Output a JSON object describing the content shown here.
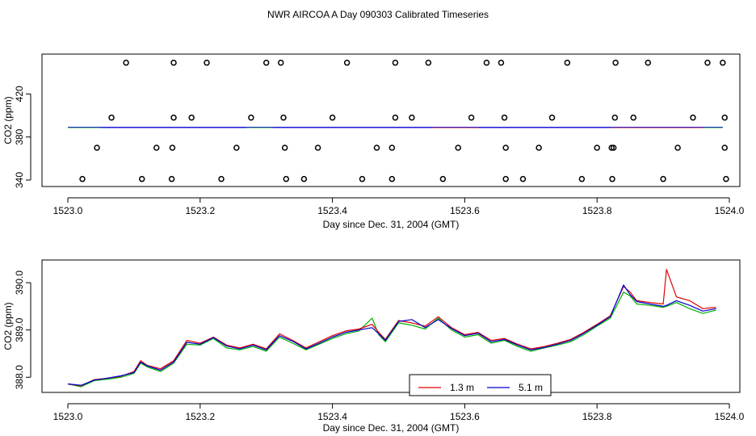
{
  "title": "NWR AIRCOA A  Day 090303  Calibrated Timeseries",
  "colors": {
    "s1": "#e00000",
    "s2": "#00b000",
    "s3": "#0000d0"
  },
  "chart_data": [
    {
      "type": "scatter",
      "xlabel": "Day since Dec. 31, 2004 (GMT)",
      "ylabel": "CO2 (ppm)",
      "xlim": [
        1523.0,
        1524.0
      ],
      "ylim": [
        334,
        457
      ],
      "xticks": [
        1523.0,
        1523.2,
        1523.4,
        1523.6,
        1523.8,
        1524.0
      ],
      "xtick_labels": [
        "1523.0",
        "1523.2",
        "1523.4",
        "1523.6",
        "1523.8",
        "1524.0"
      ],
      "yticks": [
        340,
        380,
        420
      ],
      "ytick_labels": [
        "340",
        "380",
        "420"
      ],
      "grid": false,
      "circles": [
        {
          "x": 1523.022,
          "y": 341
        },
        {
          "x": 1523.112,
          "y": 341
        },
        {
          "x": 1523.157,
          "y": 341
        },
        {
          "x": 1523.232,
          "y": 341
        },
        {
          "x": 1523.33,
          "y": 341
        },
        {
          "x": 1523.357,
          "y": 341
        },
        {
          "x": 1523.445,
          "y": 341
        },
        {
          "x": 1523.49,
          "y": 341
        },
        {
          "x": 1523.567,
          "y": 341
        },
        {
          "x": 1523.662,
          "y": 341
        },
        {
          "x": 1523.688,
          "y": 341
        },
        {
          "x": 1523.777,
          "y": 341
        },
        {
          "x": 1523.823,
          "y": 341
        },
        {
          "x": 1523.9,
          "y": 341
        },
        {
          "x": 1523.995,
          "y": 341
        },
        {
          "x": 1523.044,
          "y": 370
        },
        {
          "x": 1523.134,
          "y": 370
        },
        {
          "x": 1523.158,
          "y": 370
        },
        {
          "x": 1523.255,
          "y": 370
        },
        {
          "x": 1523.328,
          "y": 370
        },
        {
          "x": 1523.378,
          "y": 370
        },
        {
          "x": 1523.467,
          "y": 370
        },
        {
          "x": 1523.49,
          "y": 370
        },
        {
          "x": 1523.59,
          "y": 370
        },
        {
          "x": 1523.662,
          "y": 370
        },
        {
          "x": 1523.712,
          "y": 370
        },
        {
          "x": 1523.8,
          "y": 370
        },
        {
          "x": 1523.822,
          "y": 370
        },
        {
          "x": 1523.825,
          "y": 370
        },
        {
          "x": 1523.922,
          "y": 370
        },
        {
          "x": 1523.993,
          "y": 370
        },
        {
          "x": 1523.066,
          "y": 398
        },
        {
          "x": 1523.16,
          "y": 398
        },
        {
          "x": 1523.187,
          "y": 398
        },
        {
          "x": 1523.277,
          "y": 398
        },
        {
          "x": 1523.326,
          "y": 398
        },
        {
          "x": 1523.4,
          "y": 398
        },
        {
          "x": 1523.495,
          "y": 398
        },
        {
          "x": 1523.52,
          "y": 398
        },
        {
          "x": 1523.61,
          "y": 398
        },
        {
          "x": 1523.66,
          "y": 398
        },
        {
          "x": 1523.732,
          "y": 398
        },
        {
          "x": 1523.827,
          "y": 398
        },
        {
          "x": 1523.855,
          "y": 398
        },
        {
          "x": 1523.945,
          "y": 398
        },
        {
          "x": 1523.993,
          "y": 398
        },
        {
          "x": 1523.088,
          "y": 449
        },
        {
          "x": 1523.16,
          "y": 449
        },
        {
          "x": 1523.21,
          "y": 449
        },
        {
          "x": 1523.3,
          "y": 449
        },
        {
          "x": 1523.322,
          "y": 449
        },
        {
          "x": 1523.422,
          "y": 449
        },
        {
          "x": 1523.495,
          "y": 449
        },
        {
          "x": 1523.545,
          "y": 449
        },
        {
          "x": 1523.633,
          "y": 449
        },
        {
          "x": 1523.655,
          "y": 449
        },
        {
          "x": 1523.755,
          "y": 449
        },
        {
          "x": 1523.828,
          "y": 449
        },
        {
          "x": 1523.877,
          "y": 449
        },
        {
          "x": 1523.967,
          "y": 449
        },
        {
          "x": 1523.99,
          "y": 449
        }
      ],
      "line_y": 389
    },
    {
      "type": "line",
      "xlabel": "Day since Dec. 31, 2004 (GMT)",
      "ylabel": "CO2 (ppm)",
      "xlim": [
        1523.0,
        1524.0
      ],
      "ylim": [
        387.68,
        390.48
      ],
      "xticks": [
        1523.0,
        1523.2,
        1523.4,
        1523.6,
        1523.8,
        1524.0
      ],
      "xtick_labels": [
        "1523.0",
        "1523.2",
        "1523.4",
        "1523.6",
        "1523.8",
        "1524.0"
      ],
      "yticks": [
        388.0,
        389.0,
        390.0
      ],
      "ytick_labels": [
        "388.0",
        "389.0",
        "390.0"
      ],
      "grid": false,
      "legend_position": "bottom-center",
      "legend": [
        {
          "label": "1.3 m",
          "color": "#e00000"
        },
        {
          "label": "5.1 m",
          "color": "#0000d0"
        }
      ],
      "x": [
        1523.0,
        1523.02,
        1523.04,
        1523.06,
        1523.08,
        1523.1,
        1523.11,
        1523.12,
        1523.14,
        1523.16,
        1523.18,
        1523.2,
        1523.22,
        1523.24,
        1523.26,
        1523.28,
        1523.3,
        1523.32,
        1523.34,
        1523.36,
        1523.38,
        1523.4,
        1523.42,
        1523.44,
        1523.46,
        1523.47,
        1523.48,
        1523.5,
        1523.52,
        1523.54,
        1523.56,
        1523.58,
        1523.6,
        1523.62,
        1523.64,
        1523.66,
        1523.68,
        1523.7,
        1523.72,
        1523.74,
        1523.76,
        1523.78,
        1523.8,
        1523.82,
        1523.84,
        1523.85,
        1523.86,
        1523.88,
        1523.9,
        1523.905,
        1523.92,
        1523.94,
        1523.96,
        1523.98
      ],
      "series": [
        {
          "values": [
            387.86,
            387.82,
            387.95,
            387.98,
            388.02,
            388.12,
            388.35,
            388.25,
            388.18,
            388.35,
            388.78,
            388.72,
            388.85,
            388.68,
            388.62,
            388.7,
            388.6,
            388.92,
            388.78,
            388.62,
            388.75,
            388.88,
            388.98,
            389.02,
            389.12,
            388.95,
            388.8,
            389.2,
            389.15,
            389.08,
            389.28,
            389.05,
            388.9,
            388.95,
            388.78,
            388.82,
            388.7,
            388.6,
            388.65,
            388.72,
            388.8,
            388.95,
            389.12,
            389.3,
            389.92,
            389.8,
            389.62,
            389.58,
            389.55,
            390.28,
            389.7,
            389.62,
            389.45,
            389.48
          ]
        },
        {
          "values": [
            387.86,
            387.8,
            387.93,
            387.96,
            388.0,
            388.08,
            388.3,
            388.22,
            388.12,
            388.3,
            388.7,
            388.68,
            388.82,
            388.62,
            388.58,
            388.65,
            388.55,
            388.85,
            388.72,
            388.58,
            388.7,
            388.82,
            388.92,
            388.98,
            389.25,
            388.9,
            388.75,
            389.15,
            389.1,
            389.02,
            389.25,
            389.0,
            388.85,
            388.9,
            388.72,
            388.78,
            388.65,
            388.55,
            388.62,
            388.68,
            388.75,
            388.9,
            389.08,
            389.25,
            389.8,
            389.72,
            389.55,
            389.52,
            389.48,
            389.5,
            389.58,
            389.45,
            389.35,
            389.42
          ]
        },
        {
          "values": [
            387.86,
            387.83,
            387.94,
            387.98,
            388.03,
            388.1,
            388.32,
            388.24,
            388.15,
            388.32,
            388.74,
            388.7,
            388.84,
            388.66,
            388.6,
            388.68,
            388.58,
            388.88,
            388.76,
            388.6,
            388.72,
            388.85,
            388.95,
            389.0,
            389.05,
            388.92,
            388.78,
            389.18,
            389.22,
            389.05,
            389.22,
            389.03,
            388.88,
            388.93,
            388.75,
            388.8,
            388.68,
            388.58,
            388.63,
            388.7,
            388.78,
            388.93,
            389.1,
            389.28,
            389.95,
            389.75,
            389.6,
            389.55,
            389.5,
            389.52,
            389.62,
            389.52,
            389.4,
            389.45
          ]
        }
      ]
    }
  ]
}
